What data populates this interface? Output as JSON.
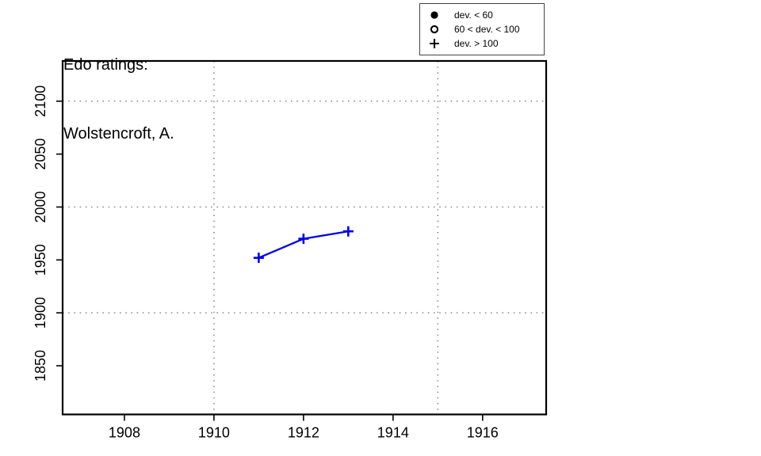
{
  "title": {
    "line1": "Edo ratings:",
    "line2": "Wolstencroft, A."
  },
  "legend": {
    "items": [
      {
        "symbol": "filled-circle",
        "label": "dev. < 60"
      },
      {
        "symbol": "open-circle",
        "label": "60 < dev. < 100"
      },
      {
        "symbol": "plus",
        "label": "dev. > 100"
      }
    ]
  },
  "chart_data": {
    "type": "line",
    "title": "Edo ratings: Wolstencroft, A.",
    "xlabel": "",
    "ylabel": "",
    "xlim": [
      1906.62,
      1917.42
    ],
    "ylim": [
      1804,
      2138
    ],
    "xticks": [
      1908,
      1910,
      1912,
      1914,
      1916
    ],
    "yticks": [
      1850,
      1900,
      1950,
      2000,
      2050,
      2100
    ],
    "grid": {
      "x_values": [
        1910,
        1915
      ],
      "y_values": [
        1900,
        2000,
        2100
      ],
      "style": "dotted",
      "color": "#8a8a8a"
    },
    "series": [
      {
        "name": "Edo rating",
        "marker": "plus",
        "color": "#0000EE",
        "points": [
          {
            "x": 1911,
            "y": 1952
          },
          {
            "x": 1912,
            "y": 1970
          },
          {
            "x": 1913,
            "y": 1977
          }
        ]
      }
    ]
  },
  "colors": {
    "frame": "#000000",
    "tick_label": "#000000",
    "background": "#ffffff"
  }
}
